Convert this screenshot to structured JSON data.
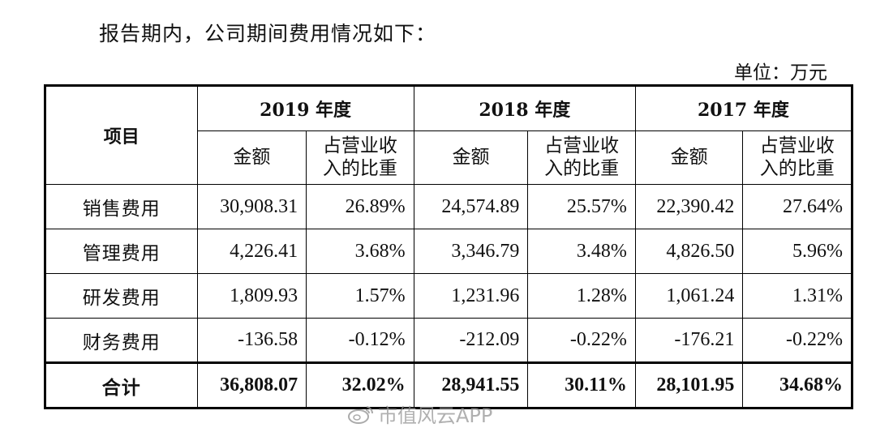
{
  "intro": "报告期内，公司期间费用情况如下：",
  "unit": "单位：万元",
  "table": {
    "item_header": "项目",
    "years": [
      "2019 年度",
      "2018 年度",
      "2017 年度"
    ],
    "sub_headers": [
      "金额",
      "占营业收入的比重",
      "金额",
      "占营业收入的比重",
      "金额",
      "占营业收入的比重"
    ],
    "sub_header_lines": {
      "amount": "金额",
      "ratio_line1": "占营业收",
      "ratio_line2": "入的比重"
    },
    "rows": [
      {
        "label": "销售费用",
        "values": [
          "30,908.31",
          "26.89%",
          "24,574.89",
          "25.57%",
          "22,390.42",
          "27.64%"
        ]
      },
      {
        "label": "管理费用",
        "values": [
          "4,226.41",
          "3.68%",
          "3,346.79",
          "3.48%",
          "4,826.50",
          "5.96%"
        ]
      },
      {
        "label": "研发费用",
        "values": [
          "1,809.93",
          "1.57%",
          "1,231.96",
          "1.28%",
          "1,061.24",
          "1.31%"
        ]
      },
      {
        "label": "财务费用",
        "values": [
          "-136.58",
          "-0.12%",
          "-212.09",
          "-0.22%",
          "-176.21",
          "-0.22%"
        ]
      }
    ],
    "total": {
      "label": "合计",
      "values": [
        "36,808.07",
        "32.02%",
        "28,941.55",
        "30.11%",
        "28,101.95",
        "34.68%"
      ]
    }
  },
  "watermark": {
    "icon": "weibo-icon",
    "text": "市值风云APP"
  }
}
